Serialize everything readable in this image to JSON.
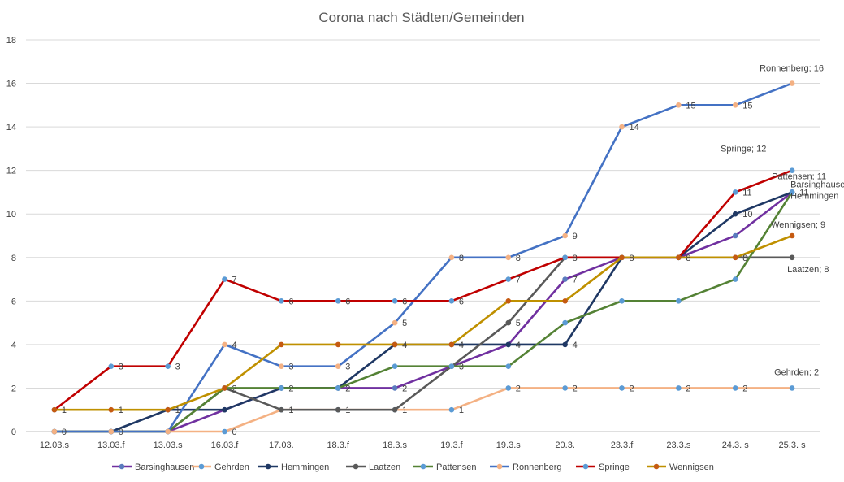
{
  "chart_data": {
    "type": "line",
    "title": "Corona nach Städten/Gemeinden",
    "xlabel": "",
    "ylabel": "",
    "categories": [
      "12.03.s",
      "13.03.f",
      "13.03.s",
      "16.03.f",
      "17.03.",
      "18.3.f",
      "18.3.s",
      "19.3.f",
      "19.3.s",
      "20.3.",
      "23.3.f",
      "23.3.s",
      "24.3. s",
      "25.3. s"
    ],
    "ylim": [
      0,
      18
    ],
    "yticks": [
      0,
      2,
      4,
      6,
      8,
      10,
      12,
      14,
      16,
      18
    ],
    "grid": true,
    "legend_position": "bottom",
    "series": [
      {
        "name": "Barsinghausen",
        "color": "#7030A0",
        "marker": "#5B7BBE",
        "values": [
          0,
          0,
          0,
          1,
          2,
          2,
          2,
          3,
          4,
          7,
          8,
          8,
          9,
          11
        ]
      },
      {
        "name": "Gehrden",
        "color": "#F4B183",
        "marker": "#5B9BD5",
        "values": [
          0,
          0,
          0,
          0,
          1,
          1,
          1,
          1,
          2,
          2,
          2,
          2,
          2,
          2
        ]
      },
      {
        "name": "Hemmingen",
        "color": "#1F3864",
        "marker": "#1F3864",
        "values": [
          0,
          0,
          1,
          1,
          2,
          2,
          4,
          4,
          4,
          4,
          8,
          8,
          10,
          11
        ]
      },
      {
        "name": "Laatzen",
        "color": "#595959",
        "marker": "#595959",
        "values": [
          0,
          0,
          0,
          2,
          1,
          1,
          1,
          3,
          5,
          8,
          8,
          8,
          8,
          8
        ]
      },
      {
        "name": "Pattensen",
        "color": "#548235",
        "marker": "#5B9BD5",
        "values": [
          0,
          0,
          0,
          2,
          2,
          2,
          3,
          3,
          3,
          5,
          6,
          6,
          7,
          11
        ]
      },
      {
        "name": "Ronnenberg",
        "color": "#4472C4",
        "marker": "#F4B183",
        "values": [
          0,
          0,
          0,
          4,
          3,
          3,
          5,
          8,
          8,
          9,
          14,
          15,
          15,
          16
        ]
      },
      {
        "name": "Springe",
        "color": "#C00000",
        "marker": "#5B9BD5",
        "values": [
          1,
          3,
          3,
          7,
          6,
          6,
          6,
          6,
          7,
          8,
          8,
          8,
          11,
          12
        ]
      },
      {
        "name": "Wennigsen",
        "color": "#BF9000",
        "marker": "#C55A11",
        "values": [
          1,
          1,
          1,
          2,
          4,
          4,
          4,
          4,
          6,
          6,
          8,
          8,
          8,
          9
        ]
      }
    ],
    "data_labels": [
      {
        "series": "Barsinghausen",
        "index": 1,
        "text": "0"
      },
      {
        "series": "Ronnenberg",
        "index": 0,
        "text": "0"
      },
      {
        "series": "Gehrden",
        "index": 3,
        "text": "0"
      },
      {
        "series": "Hemmingen",
        "index": 2,
        "text": "1"
      },
      {
        "series": "Springe",
        "index": 0,
        "text": "1"
      },
      {
        "series": "Wennigsen",
        "index": 1,
        "text": "1"
      },
      {
        "series": "Springe",
        "index": 1,
        "text": "3"
      },
      {
        "series": "Springe",
        "index": 2,
        "text": "3"
      },
      {
        "series": "Springe",
        "index": 3,
        "text": "7"
      },
      {
        "series": "Ronnenberg",
        "index": 3,
        "text": "4"
      },
      {
        "series": "Laatzen",
        "index": 3,
        "text": "2"
      },
      {
        "series": "Springe",
        "index": 4,
        "text": "6"
      },
      {
        "series": "Ronnenberg",
        "index": 4,
        "text": "3"
      },
      {
        "series": "Pattensen",
        "index": 4,
        "text": "2"
      },
      {
        "series": "Laatzen",
        "index": 4,
        "text": "1"
      },
      {
        "series": "Springe",
        "index": 5,
        "text": "6"
      },
      {
        "series": "Ronnenberg",
        "index": 5,
        "text": "3"
      },
      {
        "series": "Barsinghausen",
        "index": 5,
        "text": "2"
      },
      {
        "series": "Laatzen",
        "index": 5,
        "text": "1"
      },
      {
        "series": "Springe",
        "index": 6,
        "text": "6"
      },
      {
        "series": "Ronnenberg",
        "index": 6,
        "text": "5"
      },
      {
        "series": "Wennigsen",
        "index": 6,
        "text": "4"
      },
      {
        "series": "Barsinghausen",
        "index": 6,
        "text": "2"
      },
      {
        "series": "Gehrden",
        "index": 6,
        "text": "1"
      },
      {
        "series": "Ronnenberg",
        "index": 7,
        "text": "8"
      },
      {
        "series": "Springe",
        "index": 7,
        "text": "6"
      },
      {
        "series": "Wennigsen",
        "index": 7,
        "text": "4"
      },
      {
        "series": "Pattensen",
        "index": 7,
        "text": "3"
      },
      {
        "series": "Gehrden",
        "index": 7,
        "text": "1"
      },
      {
        "series": "Ronnenberg",
        "index": 8,
        "text": "8"
      },
      {
        "series": "Springe",
        "index": 8,
        "text": "7"
      },
      {
        "series": "Laatzen",
        "index": 8,
        "text": "5"
      },
      {
        "series": "Barsinghausen",
        "index": 8,
        "text": "4"
      },
      {
        "series": "Gehrden",
        "index": 8,
        "text": "2"
      },
      {
        "series": "Ronnenberg",
        "index": 9,
        "text": "9"
      },
      {
        "series": "Springe",
        "index": 9,
        "text": "8"
      },
      {
        "series": "Barsinghausen",
        "index": 9,
        "text": "7"
      },
      {
        "series": "Hemmingen",
        "index": 9,
        "text": "4"
      },
      {
        "series": "Gehrden",
        "index": 9,
        "text": "2"
      },
      {
        "series": "Ronnenberg",
        "index": 10,
        "text": "14"
      },
      {
        "series": "Springe",
        "index": 10,
        "text": "8"
      },
      {
        "series": "Gehrden",
        "index": 10,
        "text": "2"
      },
      {
        "series": "Ronnenberg",
        "index": 11,
        "text": "15"
      },
      {
        "series": "Springe",
        "index": 11,
        "text": "8"
      },
      {
        "series": "Gehrden",
        "index": 11,
        "text": "2"
      },
      {
        "series": "Ronnenberg",
        "index": 12,
        "text": "15"
      },
      {
        "series": "Springe",
        "index": 12,
        "text": "11"
      },
      {
        "series": "Hemmingen",
        "index": 12,
        "text": "10"
      },
      {
        "series": "Wennigsen",
        "index": 12,
        "text": "8"
      },
      {
        "series": "Gehrden",
        "index": 12,
        "text": "2"
      },
      {
        "series": "Pattensen",
        "index": 13,
        "text": "11"
      }
    ],
    "end_labels": [
      {
        "text": "Ronnenberg; 16",
        "series": "Ronnenberg"
      },
      {
        "text": "Springe; 12",
        "series": "Springe"
      },
      {
        "text": "Barsinghausen,",
        "series": "Barsinghausen"
      },
      {
        "text": "Hemmingen",
        "series": "Hemmingen"
      },
      {
        "text": "Pattensen; 11",
        "series": "Pattensen"
      },
      {
        "text": "Wennigsen; 9",
        "series": "Wennigsen"
      },
      {
        "text": "Laatzen; 8",
        "series": "Laatzen"
      },
      {
        "text": "Gehrden; 2",
        "series": "Gehrden"
      }
    ]
  }
}
